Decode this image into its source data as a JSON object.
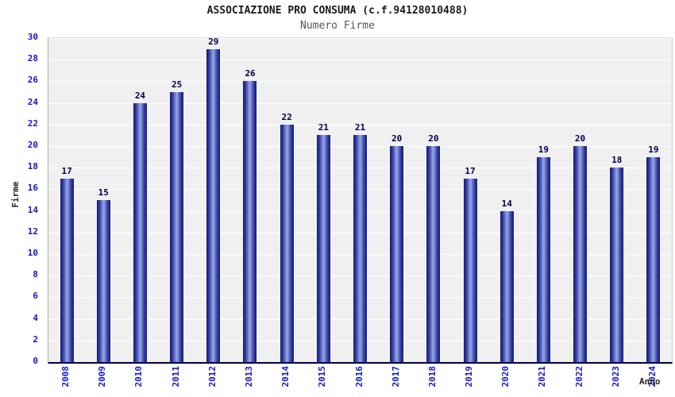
{
  "chart_data": {
    "type": "bar",
    "title": "ASSOCIAZIONE PRO CONSUMA (c.f.94128010488)",
    "subtitle": "Numero Firme",
    "xlabel": "Anno",
    "ylabel": "Firme",
    "categories": [
      "2008",
      "2009",
      "2010",
      "2011",
      "2012",
      "2013",
      "2014",
      "2015",
      "2016",
      "2017",
      "2018",
      "2019",
      "2020",
      "2021",
      "2022",
      "2023",
      "2024"
    ],
    "values": [
      17,
      15,
      24,
      25,
      29,
      26,
      22,
      21,
      21,
      20,
      20,
      17,
      14,
      19,
      20,
      18,
      19
    ],
    "ylim": [
      0,
      30
    ],
    "ytick_step": 2,
    "grid": true,
    "legend": "none",
    "colors": {
      "bar_edge": "#151c6e",
      "bar_mid": "#9aa6ea",
      "tick_label": "#1616c8",
      "value_label": "#00004d",
      "plot_bg": "#f0f0f0",
      "grid_line": "#ffffff",
      "title": "#1a1a1a",
      "subtitle": "#555555"
    }
  }
}
